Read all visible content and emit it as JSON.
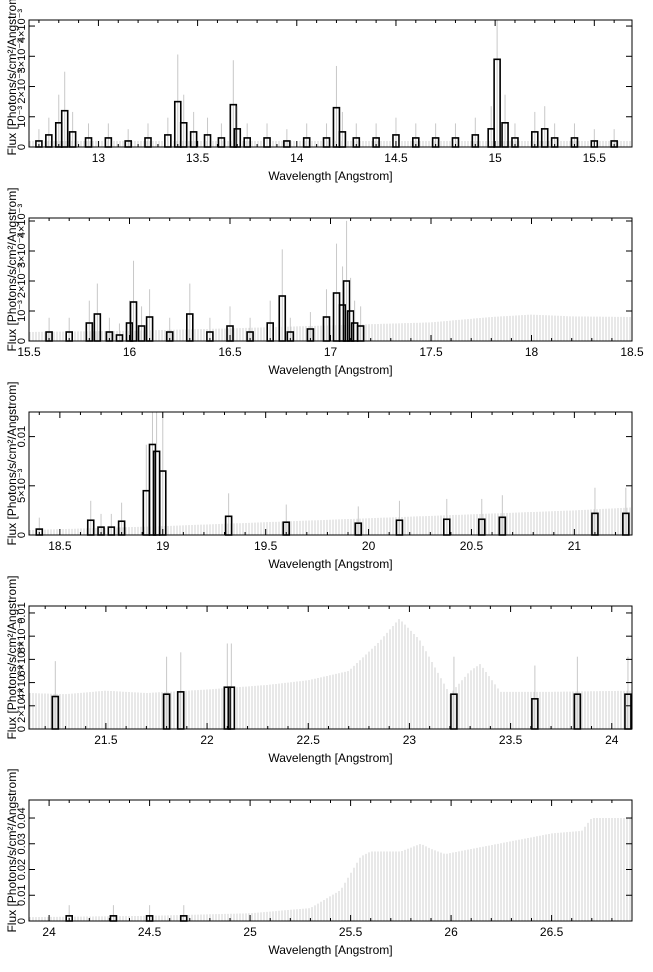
{
  "chart_data": [
    {
      "type": "line",
      "xlabel": "Wavelength [Angstrom]",
      "ylabel": "Flux [Photons/s/cm²/Angstrom]",
      "xlim": [
        12.65,
        15.69
      ],
      "ylim": [
        0,
        0.0042
      ],
      "xticks": [
        13,
        13.5,
        14,
        14.5,
        15,
        15.5
      ],
      "yticks": [
        0,
        0.001,
        0.002,
        0.003,
        0.004
      ],
      "ytick_labels": [
        "0",
        "10⁻³",
        "2×10⁻³",
        "3×10⁻³",
        "4×10⁻³"
      ],
      "model": {
        "x": [
          12.65,
          15.69
        ],
        "y": [
          0.0002,
          0.0002
        ]
      },
      "series": [
        {
          "x": [
            12.7,
            12.75,
            12.8,
            12.83,
            12.87,
            12.95,
            13.05,
            13.15,
            13.25,
            13.35,
            13.4,
            13.43,
            13.48,
            13.55,
            13.62,
            13.68,
            13.7,
            13.75,
            13.85,
            13.95,
            14.05,
            14.15,
            14.2,
            14.23,
            14.3,
            14.4,
            14.5,
            14.6,
            14.7,
            14.8,
            14.9,
            14.98,
            15.01,
            15.05,
            15.1,
            15.2,
            15.25,
            15.3,
            15.4,
            15.5,
            15.6
          ],
          "y": [
            0.0002,
            0.0004,
            0.0008,
            0.0012,
            0.0005,
            0.0003,
            0.0003,
            0.0002,
            0.0003,
            0.0004,
            0.0015,
            0.0008,
            0.0005,
            0.0004,
            0.0003,
            0.0014,
            0.0006,
            0.0003,
            0.0003,
            0.0002,
            0.0003,
            0.0003,
            0.0013,
            0.0005,
            0.0003,
            0.0003,
            0.0004,
            0.0003,
            0.0003,
            0.0003,
            0.0004,
            0.0006,
            0.0029,
            0.0008,
            0.0003,
            0.0005,
            0.0006,
            0.0003,
            0.0003,
            0.0002,
            0.0002
          ]
        }
      ]
    },
    {
      "type": "line",
      "xlabel": "Wavelength [Angstrom]",
      "ylabel": "Flux [Photons/s/cm²/Angstrom]",
      "xlim": [
        15.5,
        18.5
      ],
      "ylim": [
        0,
        0.0041
      ],
      "xticks": [
        15.5,
        16,
        16.5,
        17,
        17.5,
        18,
        18.5
      ],
      "yticks": [
        0,
        0.001,
        0.002,
        0.003,
        0.004
      ],
      "ytick_labels": [
        "0",
        "10⁻³",
        "2×10⁻³",
        "3×10⁻³",
        "4×10⁻³"
      ],
      "model": {
        "x": [
          15.5,
          16.0,
          16.5,
          17.0,
          17.5,
          17.8,
          18.0,
          18.2,
          18.5
        ],
        "y": [
          0.0003,
          0.00034,
          0.00042,
          0.00052,
          0.00062,
          0.0008,
          0.00088,
          0.00082,
          0.0008
        ]
      },
      "series": [
        {
          "x": [
            15.6,
            15.7,
            15.8,
            15.84,
            15.9,
            15.95,
            16.0,
            16.02,
            16.06,
            16.1,
            16.2,
            16.3,
            16.4,
            16.5,
            16.6,
            16.7,
            16.76,
            16.8,
            16.9,
            16.98,
            17.03,
            17.06,
            17.08,
            17.1,
            17.12,
            17.15
          ],
          "y": [
            0.0003,
            0.0003,
            0.0006,
            0.0009,
            0.0003,
            0.0002,
            0.0006,
            0.0013,
            0.0005,
            0.0008,
            0.0003,
            0.0009,
            0.0003,
            0.0005,
            0.0003,
            0.0006,
            0.0015,
            0.0003,
            0.0004,
            0.0008,
            0.0016,
            0.0012,
            0.002,
            0.001,
            0.0006,
            0.0005
          ]
        }
      ]
    },
    {
      "type": "line",
      "xlabel": "Wavelength [Angstrom]",
      "ylabel": "Flux [Photons/s/cm²/Angstrom]",
      "xlim": [
        18.35,
        21.28
      ],
      "ylim": [
        0,
        0.0125
      ],
      "xticks": [
        18.5,
        19,
        19.5,
        20,
        20.5,
        21
      ],
      "yticks": [
        0,
        0.005,
        0.01
      ],
      "ytick_labels": [
        "0",
        "5×10⁻³",
        "0.01"
      ],
      "model": {
        "x": [
          18.35,
          19.0,
          19.5,
          20.0,
          20.5,
          21.0,
          21.28
        ],
        "y": [
          0.0005,
          0.0009,
          0.0013,
          0.0017,
          0.0021,
          0.0025,
          0.0028
        ]
      },
      "series": [
        {
          "x": [
            18.4,
            18.65,
            18.7,
            18.75,
            18.8,
            18.92,
            18.95,
            18.97,
            19.0,
            19.32,
            19.6,
            19.95,
            20.15,
            20.38,
            20.55,
            20.65,
            21.1,
            21.25
          ],
          "y": [
            0.0006,
            0.0015,
            0.0008,
            0.0008,
            0.0014,
            0.0045,
            0.0092,
            0.0085,
            0.0065,
            0.0019,
            0.0013,
            0.0012,
            0.0015,
            0.0016,
            0.0016,
            0.0018,
            0.0022,
            0.0022
          ]
        }
      ]
    },
    {
      "type": "line",
      "xlabel": "Wavelength [Angstrom]",
      "ylabel": "Flux [Photons/s/cm²/Angstrom]",
      "xlim": [
        21.12,
        24.1
      ],
      "ylim": [
        0,
        0.0106
      ],
      "xticks": [
        21.5,
        22,
        22.5,
        23,
        23.5,
        24
      ],
      "yticks": [
        0,
        0.002,
        0.004,
        0.006,
        0.008,
        0.01
      ],
      "ytick_labels": [
        "0",
        "2×10⁻³",
        "4×10⁻³",
        "6×10⁻³",
        "8×10⁻³",
        "0.01"
      ],
      "model": {
        "x": [
          21.12,
          21.3,
          21.5,
          21.7,
          22.0,
          22.3,
          22.5,
          22.7,
          22.85,
          22.95,
          23.05,
          23.2,
          23.3,
          23.35,
          23.45,
          23.7,
          24.1
        ],
        "y": [
          0.0031,
          0.003,
          0.0033,
          0.0031,
          0.0034,
          0.0038,
          0.0042,
          0.005,
          0.0075,
          0.0095,
          0.0077,
          0.003,
          0.005,
          0.0056,
          0.0032,
          0.0032,
          0.0033
        ]
      },
      "series": [
        {
          "x": [
            21.25,
            21.8,
            21.87,
            22.1,
            22.12,
            23.22,
            23.62,
            23.83,
            24.08
          ],
          "y": [
            0.0028,
            0.003,
            0.0032,
            0.0036,
            0.0036,
            0.003,
            0.0026,
            0.003,
            0.003
          ]
        }
      ]
    },
    {
      "type": "line",
      "xlabel": "Wavelength [Angstrom]",
      "ylabel": "Flux [Photons/s/cm²/Angstrom]",
      "xlim": [
        23.9,
        26.9
      ],
      "ylim": [
        0,
        0.047
      ],
      "xticks": [
        24,
        24.5,
        25,
        25.5,
        26,
        26.5
      ],
      "yticks": [
        0,
        0.01,
        0.02,
        0.03,
        0.04
      ],
      "ytick_labels": [
        "0",
        "0.01",
        "0.02",
        "0.03",
        "0.04"
      ],
      "model": {
        "x": [
          23.9,
          24.5,
          25.0,
          25.3,
          25.45,
          25.55,
          25.6,
          25.75,
          25.85,
          25.9,
          25.97,
          26.5,
          26.65,
          26.7,
          26.9
        ],
        "y": [
          0.0015,
          0.002,
          0.003,
          0.005,
          0.012,
          0.025,
          0.027,
          0.027,
          0.03,
          0.028,
          0.026,
          0.034,
          0.035,
          0.04,
          0.04
        ]
      },
      "series": [
        {
          "x": [
            24.1,
            24.32,
            24.5,
            24.67
          ],
          "y": [
            0.002,
            0.002,
            0.002,
            0.002
          ]
        }
      ]
    }
  ]
}
